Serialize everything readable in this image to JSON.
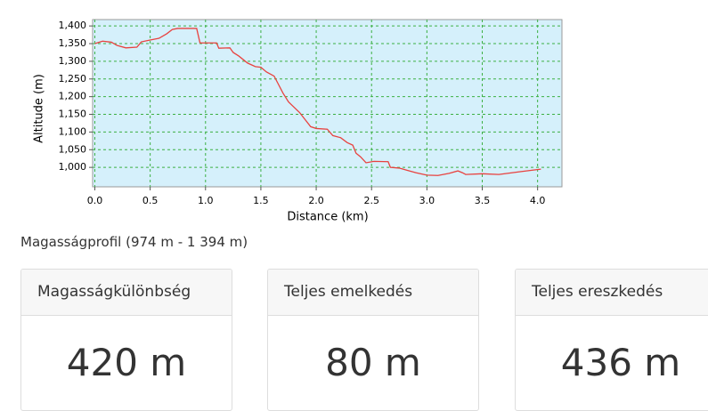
{
  "chart_data": {
    "type": "line",
    "xlabel": "Distance (km)",
    "ylabel": "Altitude (m)",
    "x": [
      0,
      0.07,
      0.15,
      0.2,
      0.28,
      0.38,
      0.42,
      0.5,
      0.58,
      0.65,
      0.7,
      0.75,
      0.92,
      0.95,
      1.1,
      1.12,
      1.22,
      1.25,
      1.3,
      1.38,
      1.45,
      1.5,
      1.55,
      1.62,
      1.65,
      1.7,
      1.75,
      1.8,
      1.85,
      1.9,
      1.95,
      2.0,
      2.1,
      2.15,
      2.22,
      2.28,
      2.33,
      2.36,
      2.4,
      2.45,
      2.52,
      2.65,
      2.67,
      2.75,
      2.82,
      2.9,
      3.0,
      3.1,
      3.2,
      3.28,
      3.32,
      3.35,
      3.5,
      3.65,
      3.75,
      3.85,
      4.03
    ],
    "values": [
      1350,
      1357,
      1354,
      1345,
      1338,
      1340,
      1355,
      1360,
      1365,
      1378,
      1390,
      1393,
      1393,
      1352,
      1352,
      1337,
      1338,
      1325,
      1315,
      1295,
      1285,
      1283,
      1270,
      1258,
      1240,
      1210,
      1185,
      1170,
      1155,
      1135,
      1115,
      1110,
      1108,
      1090,
      1084,
      1070,
      1063,
      1040,
      1030,
      1013,
      1017,
      1016,
      1000,
      998,
      992,
      985,
      978,
      977,
      983,
      990,
      985,
      980,
      982,
      980,
      984,
      988,
      995
    ],
    "color": "#e8423f",
    "xlim": [
      -0.02,
      4.22
    ],
    "ylim": [
      945,
      1418
    ],
    "xticks": [
      {
        "value": 0,
        "label": "0.0"
      },
      0.5,
      {
        "value": 1,
        "label": "1.0"
      },
      1.5,
      {
        "value": 2,
        "label": "2.0"
      },
      2.5,
      {
        "value": 3,
        "label": "3.0"
      },
      3.5,
      {
        "value": 4,
        "label": "4.0"
      }
    ],
    "yticks": [
      {
        "value": 1000,
        "label": "1,000"
      },
      {
        "value": 1050,
        "label": "1,050"
      },
      {
        "value": 1100,
        "label": "1,100"
      },
      {
        "value": 1150,
        "label": "1,150"
      },
      {
        "value": 1200,
        "label": "1,200"
      },
      {
        "value": 1250,
        "label": "1,250"
      },
      {
        "value": 1300,
        "label": "1,300"
      },
      {
        "value": 1350,
        "label": "1,350"
      },
      {
        "value": 1400,
        "label": "1,400"
      }
    ],
    "grid": true
  },
  "caption": "Magasságprofil (974 m - 1 394 m)",
  "cards": [
    {
      "title": "Magasságkülönbség",
      "value": "420 m"
    },
    {
      "title": "Teljes emelkedés",
      "value": "80 m"
    },
    {
      "title": "Teljes ereszkedés",
      "value": "436 m"
    }
  ]
}
